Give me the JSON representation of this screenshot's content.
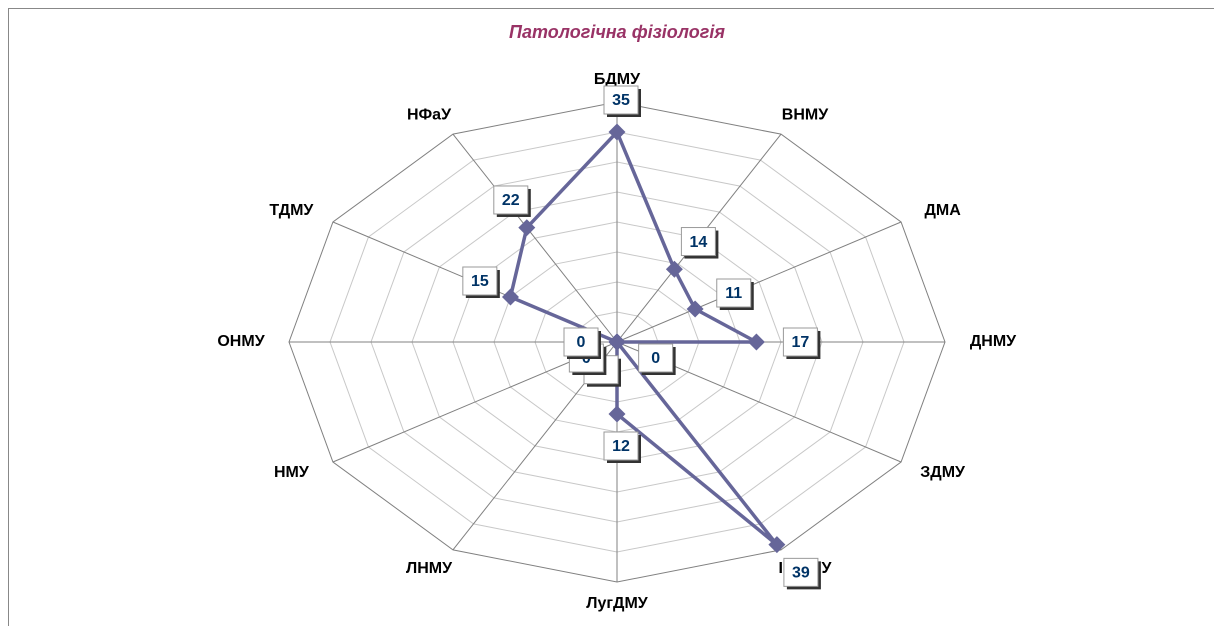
{
  "chart_data": {
    "type": "radar",
    "title": "Патологічна фізіологія",
    "categories": [
      "БДМУ",
      "ВНМУ",
      "ДМА",
      "ДНМУ",
      "ЗДМУ",
      "ІФНМУ",
      "ЛугДМУ",
      "ЛНМУ",
      "НМУ",
      "ОНМУ",
      "ТДМУ",
      "НФаУ"
    ],
    "values": [
      35,
      14,
      11,
      17,
      0,
      39,
      12,
      0,
      0,
      0,
      15,
      22
    ],
    "color": "#666699",
    "ylim": [
      0,
      40
    ],
    "yticks": [
      0,
      5,
      10,
      15,
      20,
      25,
      30,
      35,
      40
    ],
    "grid": true
  }
}
